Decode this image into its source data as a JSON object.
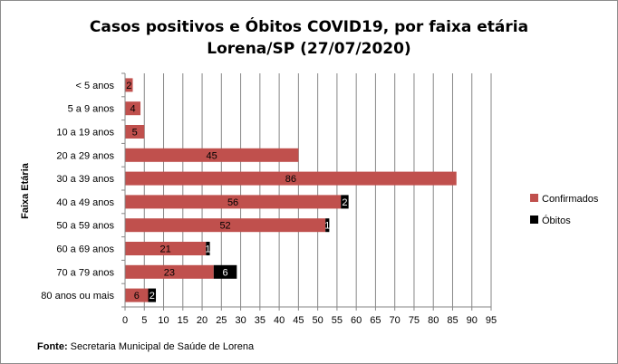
{
  "chart_data": {
    "type": "bar",
    "orientation": "horizontal",
    "stacked": true,
    "title_line1": "Casos positivos  e Óbitos COVID19, por faixa etária",
    "title_line2": "Lorena/SP (27/07/2020)",
    "ylabel": "Faixa Etária",
    "xlim": [
      0,
      95
    ],
    "xticks": [
      0,
      5,
      10,
      15,
      20,
      25,
      30,
      35,
      40,
      45,
      50,
      55,
      60,
      65,
      70,
      75,
      80,
      85,
      90,
      95
    ],
    "grid": true,
    "legend_position": "right",
    "categories": [
      "< 5 anos",
      "5 a 9 anos",
      "10 a 19 anos",
      "20 a 29 anos",
      "30 a 39 anos",
      "40 a 49 anos",
      "50 a 59 anos",
      "60 a 69 anos",
      "70 a 79 anos",
      "80 anos ou mais"
    ],
    "series": [
      {
        "name": "Confirmados",
        "color": "#c0504d",
        "values": [
          2,
          4,
          5,
          45,
          86,
          56,
          52,
          21,
          23,
          6
        ]
      },
      {
        "name": "Óbitos",
        "color": "#000000",
        "values": [
          0,
          0,
          0,
          0,
          0,
          2,
          1,
          1,
          6,
          2
        ]
      }
    ]
  },
  "source": {
    "label": "Fonte:",
    "text": " Secretaria Municipal de Saúde de Lorena"
  }
}
